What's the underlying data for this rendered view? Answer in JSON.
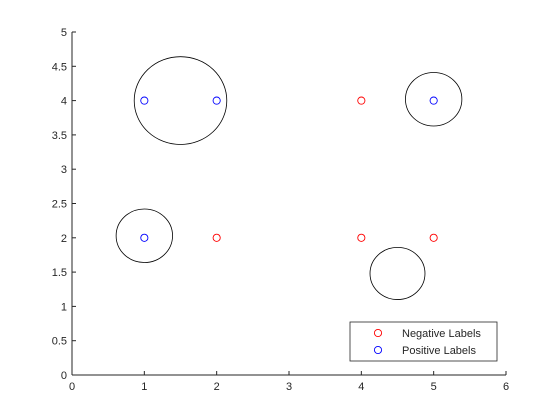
{
  "chart_data": {
    "type": "scatter",
    "title": "",
    "xlabel": "",
    "ylabel": "",
    "xlim": [
      0,
      6
    ],
    "ylim": [
      0,
      5
    ],
    "xticks": [
      0,
      1,
      2,
      3,
      4,
      5,
      6
    ],
    "yticks": [
      0,
      0.5,
      1,
      1.5,
      2,
      2.5,
      3,
      3.5,
      4,
      4.5,
      5
    ],
    "xtick_labels": [
      "0",
      "1",
      "2",
      "3",
      "4",
      "5",
      "6"
    ],
    "ytick_labels": [
      "0",
      "0.5",
      "1",
      "1.5",
      "2",
      "2.5",
      "3",
      "3.5",
      "4",
      "4.5",
      "5"
    ],
    "grid": false,
    "legend_position": "bottom-right",
    "series": [
      {
        "name": "Negative Labels",
        "color": "#ff0000",
        "marker": "circle-open",
        "points": [
          [
            2,
            2
          ],
          [
            4,
            2
          ],
          [
            5,
            2
          ],
          [
            4,
            4
          ]
        ]
      },
      {
        "name": "Positive Labels",
        "color": "#0000ff",
        "marker": "circle-open",
        "points": [
          [
            1,
            2
          ],
          [
            1,
            4
          ],
          [
            2,
            4
          ],
          [
            5,
            4
          ]
        ]
      }
    ],
    "circles": [
      {
        "cx": 1.5,
        "cy": 4.0,
        "r": 0.64
      },
      {
        "cx": 1.0,
        "cy": 2.03,
        "r": 0.39
      },
      {
        "cx": 5.0,
        "cy": 4.02,
        "r": 0.39
      },
      {
        "cx": 4.5,
        "cy": 1.48,
        "r": 0.38
      }
    ]
  }
}
